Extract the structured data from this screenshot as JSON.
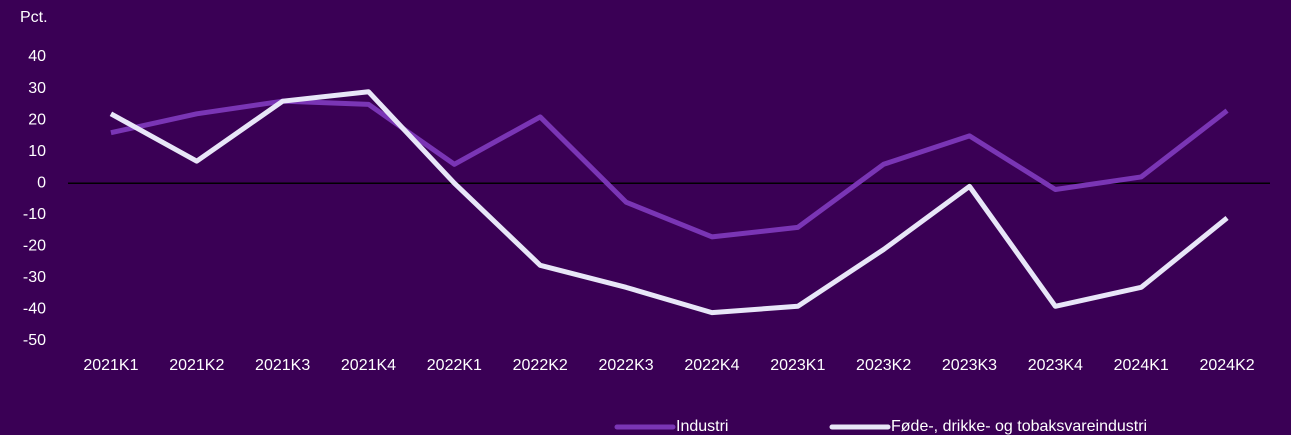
{
  "chart_data": {
    "type": "line",
    "y_label": "Pct.",
    "categories": [
      "2021K1",
      "2021K2",
      "2021K3",
      "2021K4",
      "2022K1",
      "2022K2",
      "2022K3",
      "2022K4",
      "2023K1",
      "2023K2",
      "2023K3",
      "2023K4",
      "2024K1",
      "2024K2"
    ],
    "series": [
      {
        "name": "Industri",
        "color": "#7a35b5",
        "values": [
          16,
          22,
          26,
          25,
          6,
          21,
          -6,
          -17,
          -14,
          6,
          15,
          -2,
          2,
          23
        ]
      },
      {
        "name": "Føde-, drikke- og tobaksvareindustri",
        "color": "#e8e6f8",
        "values": [
          22,
          7,
          26,
          29,
          0,
          -26,
          -33,
          -41,
          -39,
          -21,
          -1,
          -39,
          -33,
          -11
        ]
      }
    ],
    "ylim": [
      -50,
      40
    ],
    "yticks": [
      -50,
      -40,
      -30,
      -20,
      -10,
      0,
      10,
      20,
      30,
      40
    ],
    "grid": false,
    "legend": "bottom"
  }
}
